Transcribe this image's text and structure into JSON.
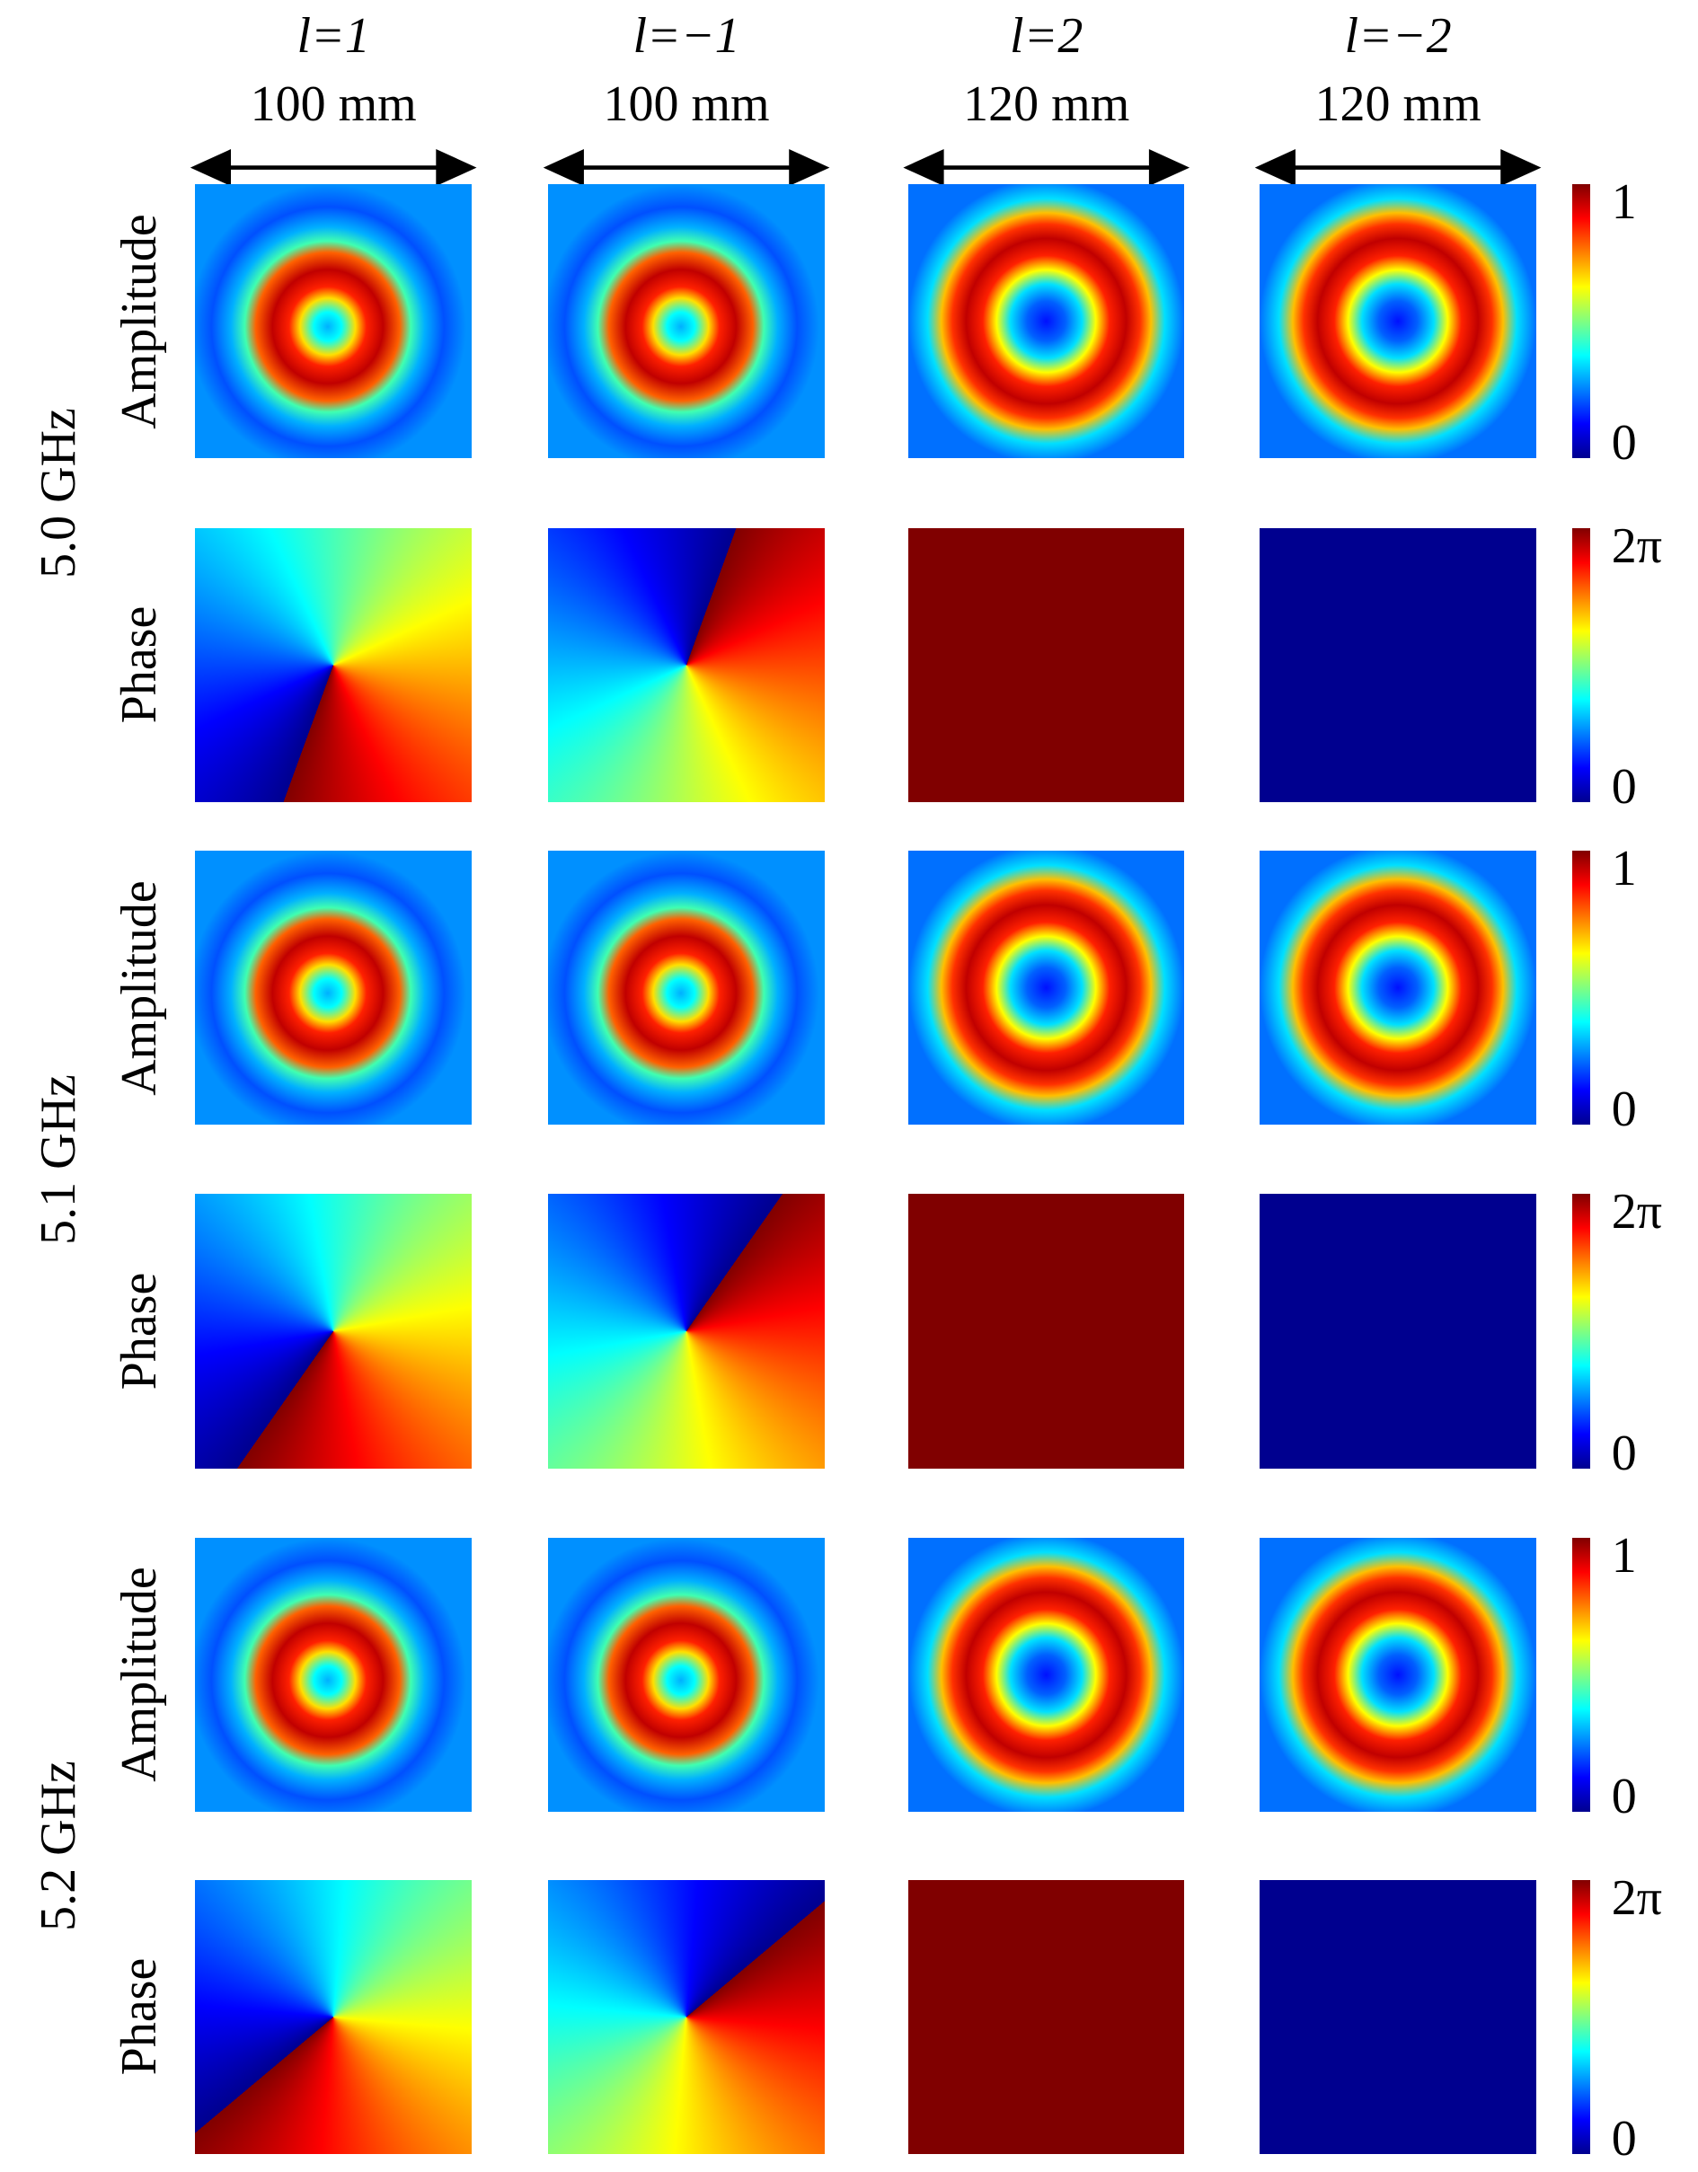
{
  "columns": [
    {
      "mode": "l=1",
      "size": "100 mm"
    },
    {
      "mode": "l=−1",
      "size": "100 mm"
    },
    {
      "mode": "l=2",
      "size": "120 mm"
    },
    {
      "mode": "l=−2",
      "size": "120 mm"
    }
  ],
  "groups": [
    {
      "frequency": "5.0 GHz",
      "rows": [
        {
          "label": "Amplitude",
          "colorbar": {
            "max": "1",
            "min": "0"
          }
        },
        {
          "label": "Phase",
          "colorbar": {
            "max": "2π",
            "min": "0"
          }
        }
      ]
    },
    {
      "frequency": "5.1 GHz",
      "rows": [
        {
          "label": "Amplitude",
          "colorbar": {
            "max": "1",
            "min": "0"
          }
        },
        {
          "label": "Phase",
          "colorbar": {
            "max": "2π",
            "min": "0"
          }
        }
      ]
    },
    {
      "frequency": "5.2 GHz",
      "rows": [
        {
          "label": "Amplitude",
          "colorbar": {
            "max": "1",
            "min": "0"
          }
        },
        {
          "label": "Phase",
          "colorbar": {
            "max": "2π",
            "min": "0"
          }
        }
      ]
    }
  ]
}
